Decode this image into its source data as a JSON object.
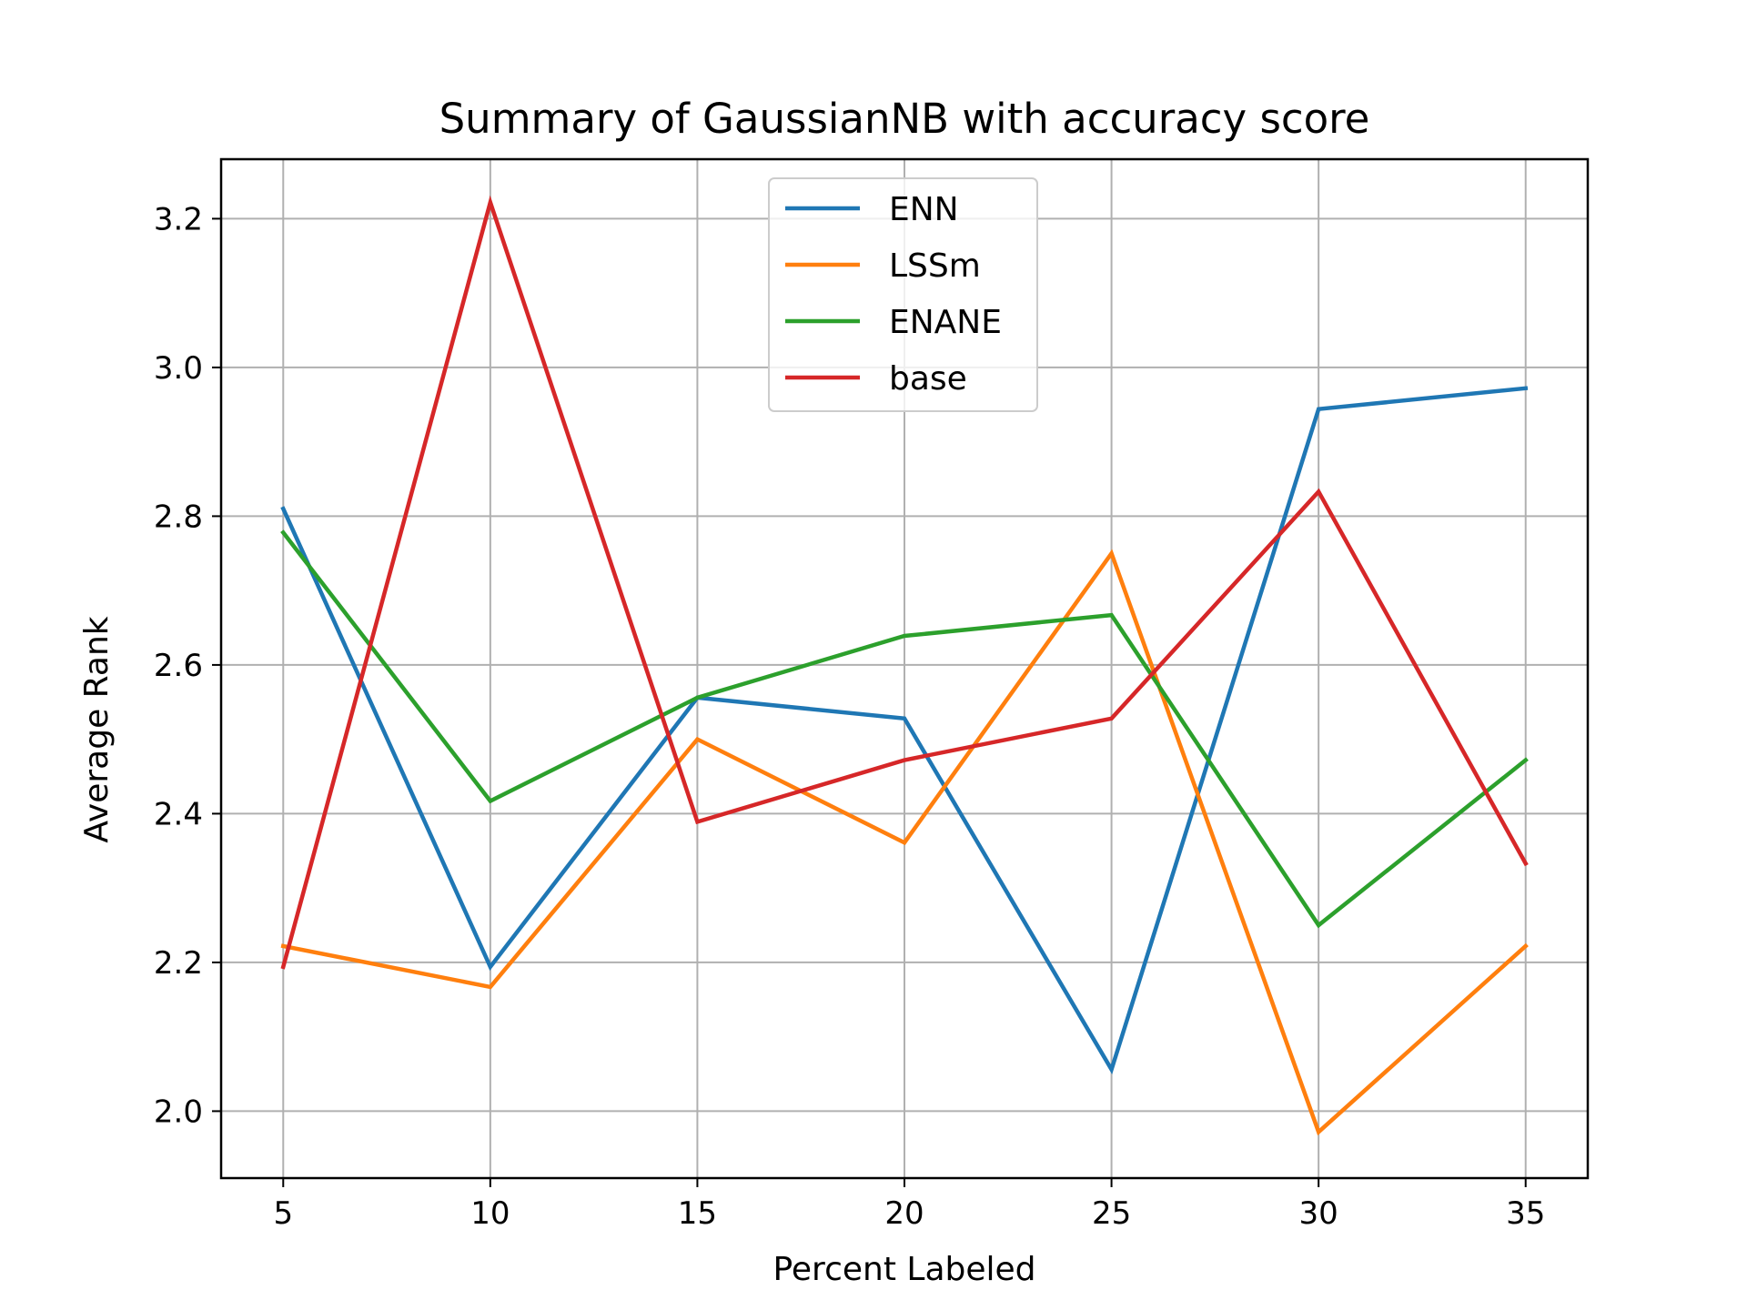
{
  "chart_data": {
    "type": "line",
    "title": "Summary of GaussianNB with accuracy score",
    "xlabel": "Percent Labeled",
    "ylabel": "Average Rank",
    "x": [
      5,
      10,
      15,
      20,
      25,
      30,
      35
    ],
    "xlim": [
      3.5,
      36.5
    ],
    "ylim": [
      1.91,
      3.28
    ],
    "xticks": [
      5,
      10,
      15,
      20,
      25,
      30,
      35
    ],
    "yticks": [
      2.0,
      2.2,
      2.4,
      2.6,
      2.8,
      3.0,
      3.2
    ],
    "xtick_labels": [
      "5",
      "10",
      "15",
      "20",
      "25",
      "30",
      "35"
    ],
    "ytick_labels": [
      "2.0",
      "2.2",
      "2.4",
      "2.6",
      "2.8",
      "3.0",
      "3.2"
    ],
    "grid": true,
    "legend_position": "top-center",
    "series": [
      {
        "name": "ENN",
        "color": "#1f77b4",
        "values": [
          2.81,
          2.194,
          2.556,
          2.528,
          2.056,
          2.944,
          2.972
        ]
      },
      {
        "name": "LSSm",
        "color": "#ff7f0e",
        "values": [
          2.222,
          2.167,
          2.5,
          2.361,
          2.75,
          1.972,
          2.222
        ]
      },
      {
        "name": "ENANE",
        "color": "#2ca02c",
        "values": [
          2.778,
          2.417,
          2.556,
          2.639,
          2.667,
          2.25,
          2.472
        ]
      },
      {
        "name": "base",
        "color": "#d62728",
        "values": [
          2.194,
          3.222,
          2.389,
          2.472,
          2.528,
          2.833,
          2.333
        ]
      }
    ]
  }
}
